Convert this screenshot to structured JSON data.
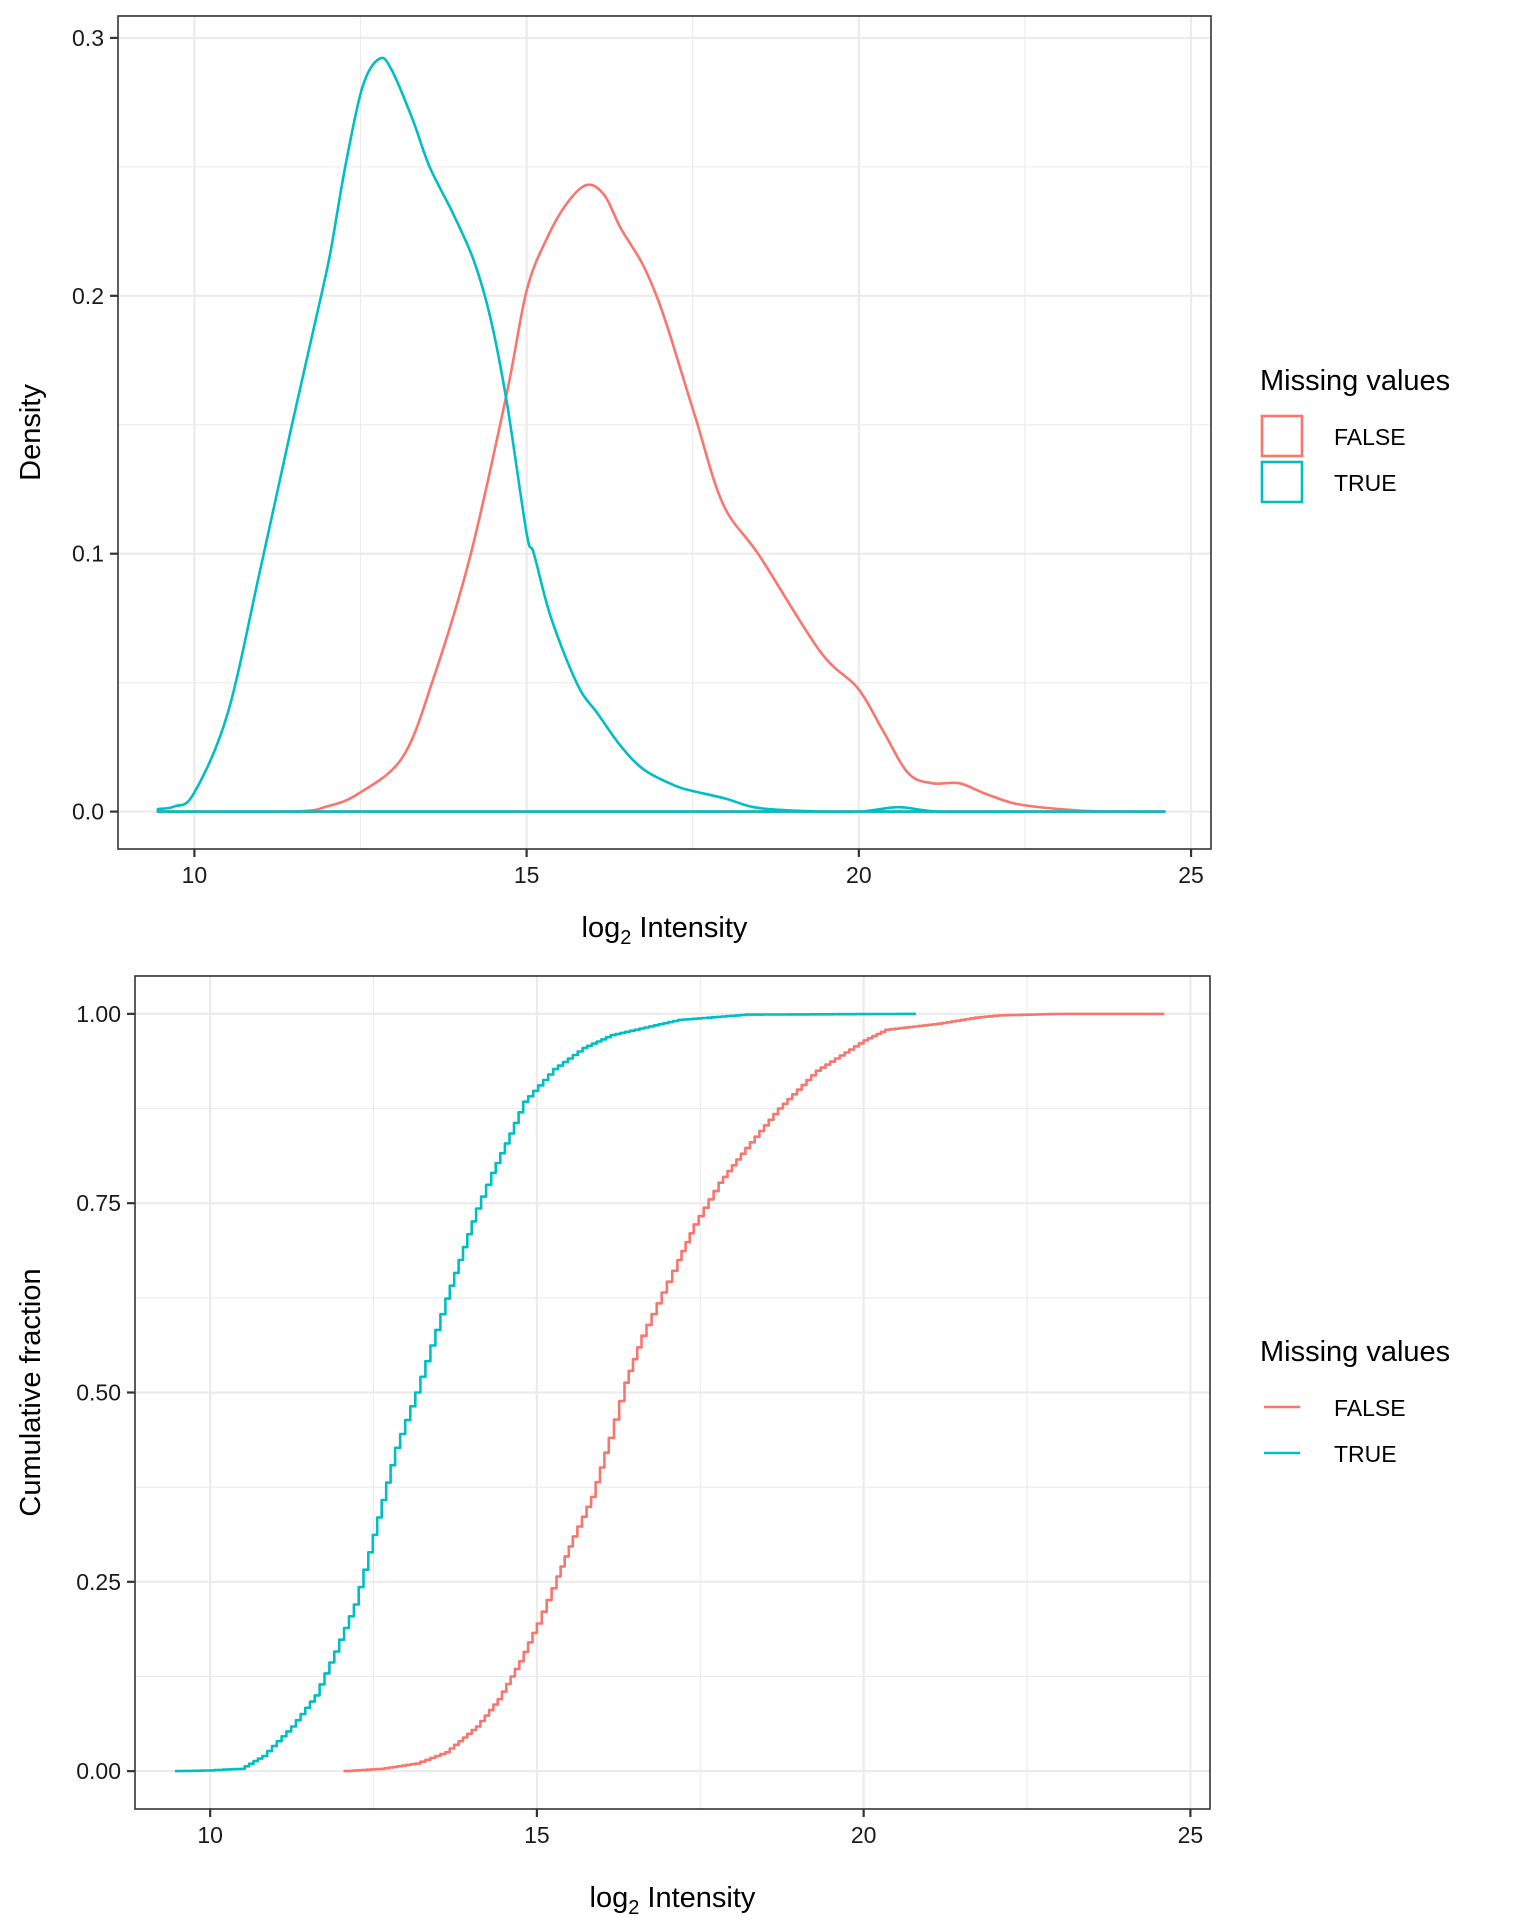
{
  "chart_data": [
    {
      "type": "line",
      "subtype": "density",
      "title": "",
      "xlabel": "log2 Intensity",
      "xlabel_main": "log",
      "xlabel_sub": "2",
      "xlabel_rest": " Intensity",
      "ylabel": "Density",
      "xlim": [
        8.85,
        25.3
      ],
      "ylim": [
        -0.0145,
        0.3085
      ],
      "xticks": [
        10,
        15,
        20,
        25
      ],
      "xtick_labels": [
        "10",
        "15",
        "20",
        "25"
      ],
      "xminor": [
        12.5,
        17.5,
        22.5
      ],
      "yticks": [
        0.0,
        0.1,
        0.2,
        0.3
      ],
      "ytick_labels": [
        "0.0",
        "0.1",
        "0.2",
        "0.3"
      ],
      "yminor": [
        0.05,
        0.15,
        0.25
      ],
      "grid": true,
      "legend": {
        "title": "Missing values",
        "position": "right",
        "key": "outlined-box",
        "entries": [
          "FALSE",
          "TRUE"
        ]
      },
      "series": [
        {
          "name": "FALSE",
          "color": "#F8766D",
          "x": [
            9.45,
            11.46,
            12.0,
            12.47,
            13.13,
            13.59,
            14.15,
            14.7,
            15.0,
            15.3,
            15.61,
            15.91,
            16.17,
            16.42,
            16.73,
            16.97,
            17.18,
            17.55,
            17.96,
            18.51,
            19.42,
            19.98,
            20.35,
            20.74,
            21.1,
            21.51,
            21.9,
            22.37,
            23.0,
            23.7,
            24.6
          ],
          "y": [
            0.0,
            0.0,
            0.002,
            0.007,
            0.021,
            0.051,
            0.099,
            0.162,
            0.202,
            0.222,
            0.236,
            0.243,
            0.239,
            0.226,
            0.213,
            0.199,
            0.183,
            0.152,
            0.119,
            0.099,
            0.062,
            0.048,
            0.032,
            0.015,
            0.011,
            0.011,
            0.007,
            0.003,
            0.001,
            0.0,
            0.0
          ]
        },
        {
          "name": "TRUE",
          "color": "#00BFC4",
          "x": [
            9.45,
            9.7,
            9.99,
            10.5,
            11.0,
            11.46,
            11.81,
            12.04,
            12.27,
            12.53,
            12.79,
            12.98,
            13.29,
            13.54,
            13.89,
            14.2,
            14.45,
            14.7,
            15.0,
            15.11,
            15.37,
            15.77,
            16.07,
            16.43,
            16.78,
            17.24,
            17.5,
            18.0,
            18.46,
            19.2,
            20.0,
            20.6,
            21.2,
            22.5,
            24.6
          ],
          "y": [
            0.001,
            0.002,
            0.007,
            0.038,
            0.095,
            0.149,
            0.189,
            0.216,
            0.25,
            0.281,
            0.292,
            0.287,
            0.268,
            0.25,
            0.232,
            0.214,
            0.192,
            0.159,
            0.108,
            0.1,
            0.075,
            0.049,
            0.038,
            0.025,
            0.016,
            0.01,
            0.008,
            0.005,
            0.0015,
            0.0002,
            0.0,
            0.0017,
            0.0,
            0.0,
            0.0
          ]
        }
      ]
    },
    {
      "type": "line",
      "subtype": "ecdf",
      "title": "",
      "xlabel": "log2 Intensity",
      "xlabel_main": "log",
      "xlabel_sub": "2",
      "xlabel_rest": " Intensity",
      "ylabel": "Cumulative fraction",
      "xlim": [
        8.85,
        25.3
      ],
      "ylim": [
        -0.05,
        1.05
      ],
      "xticks": [
        10,
        15,
        20,
        25
      ],
      "xtick_labels": [
        "10",
        "15",
        "20",
        "25"
      ],
      "xminor": [
        12.5,
        17.5,
        22.5
      ],
      "yticks": [
        0.0,
        0.25,
        0.5,
        0.75,
        1.0
      ],
      "ytick_labels": [
        "0.00",
        "0.25",
        "0.50",
        "0.75",
        "1.00"
      ],
      "yminor": [
        0.125,
        0.375,
        0.625,
        0.875
      ],
      "grid": true,
      "legend": {
        "title": "Missing values",
        "position": "right",
        "key": "line",
        "entries": [
          "FALSE",
          "TRUE"
        ]
      },
      "series": [
        {
          "name": "FALSE",
          "color": "#F8766D",
          "x": [
            12.04,
            12.6,
            13.14,
            13.6,
            14.07,
            14.4,
            14.73,
            15.0,
            15.3,
            15.55,
            15.83,
            16.1,
            16.34,
            16.6,
            16.91,
            17.15,
            17.4,
            17.78,
            18.19,
            18.69,
            19.27,
            20.0,
            20.33,
            21.13,
            21.7,
            22.06,
            23.0,
            24.6
          ],
          "y": [
            0.0,
            0.003,
            0.01,
            0.025,
            0.059,
            0.095,
            0.145,
            0.195,
            0.257,
            0.31,
            0.362,
            0.44,
            0.513,
            0.575,
            0.632,
            0.675,
            0.722,
            0.777,
            0.823,
            0.875,
            0.925,
            0.965,
            0.979,
            0.987,
            0.995,
            0.998,
            1.0,
            1.0
          ]
        },
        {
          "name": "TRUE",
          "color": "#00BFC4",
          "x": [
            9.46,
            10.0,
            10.2,
            10.46,
            10.8,
            11.24,
            11.6,
            11.9,
            12.2,
            12.42,
            12.83,
            13.14,
            13.6,
            14.07,
            14.3,
            14.58,
            14.79,
            15.25,
            15.7,
            16.13,
            17.16,
            18.19,
            20.8
          ],
          "y": [
            0.0,
            0.001,
            0.002,
            0.003,
            0.02,
            0.059,
            0.1,
            0.158,
            0.22,
            0.289,
            0.427,
            0.5,
            0.624,
            0.743,
            0.79,
            0.842,
            0.884,
            0.927,
            0.955,
            0.972,
            0.992,
            0.999,
            1.0
          ]
        }
      ]
    }
  ]
}
